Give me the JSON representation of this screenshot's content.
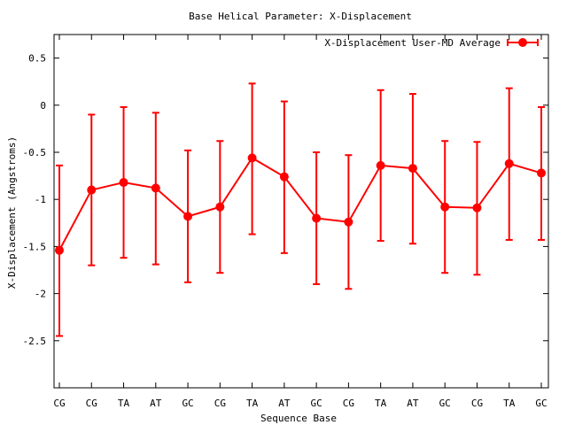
{
  "chart_data": {
    "type": "line",
    "title": "Base  Helical Parameter: X-Displacement",
    "xlabel": "Sequence Base",
    "ylabel": "X-Displacement (Angstroms)",
    "categories": [
      "CG",
      "CG",
      "TA",
      "AT",
      "GC",
      "CG",
      "TA",
      "AT",
      "GC",
      "CG",
      "TA",
      "AT",
      "GC",
      "CG",
      "TA",
      "GC"
    ],
    "ylim": [
      -3.0,
      0.75
    ],
    "yticks": [
      0.5,
      0,
      -0.5,
      -1,
      -1.5,
      -2,
      -2.5
    ],
    "ytick_labels": [
      "0.5",
      "0",
      "-0.5",
      "-1",
      "-1.5",
      "-2",
      "-2.5"
    ],
    "grid": false,
    "legend_position": "top-right",
    "series": [
      {
        "name": "X-Displacement User-MD Average",
        "color": "#ff0000",
        "values": [
          -1.54,
          -0.9,
          -0.82,
          -0.88,
          -1.18,
          -1.08,
          -0.56,
          -0.76,
          -1.2,
          -1.24,
          -0.64,
          -0.67,
          -1.08,
          -1.09,
          -0.62,
          -0.72
        ],
        "error_low": [
          -2.45,
          -1.7,
          -1.62,
          -1.69,
          -1.88,
          -1.78,
          -1.37,
          -1.57,
          -1.9,
          -1.95,
          -1.44,
          -1.47,
          -1.78,
          -1.8,
          -1.43,
          -1.43
        ],
        "error_high": [
          -0.64,
          -0.1,
          -0.02,
          -0.08,
          -0.48,
          -0.38,
          0.23,
          0.04,
          -0.5,
          -0.53,
          0.16,
          0.12,
          -0.38,
          -0.39,
          0.18,
          -0.02
        ]
      }
    ]
  }
}
